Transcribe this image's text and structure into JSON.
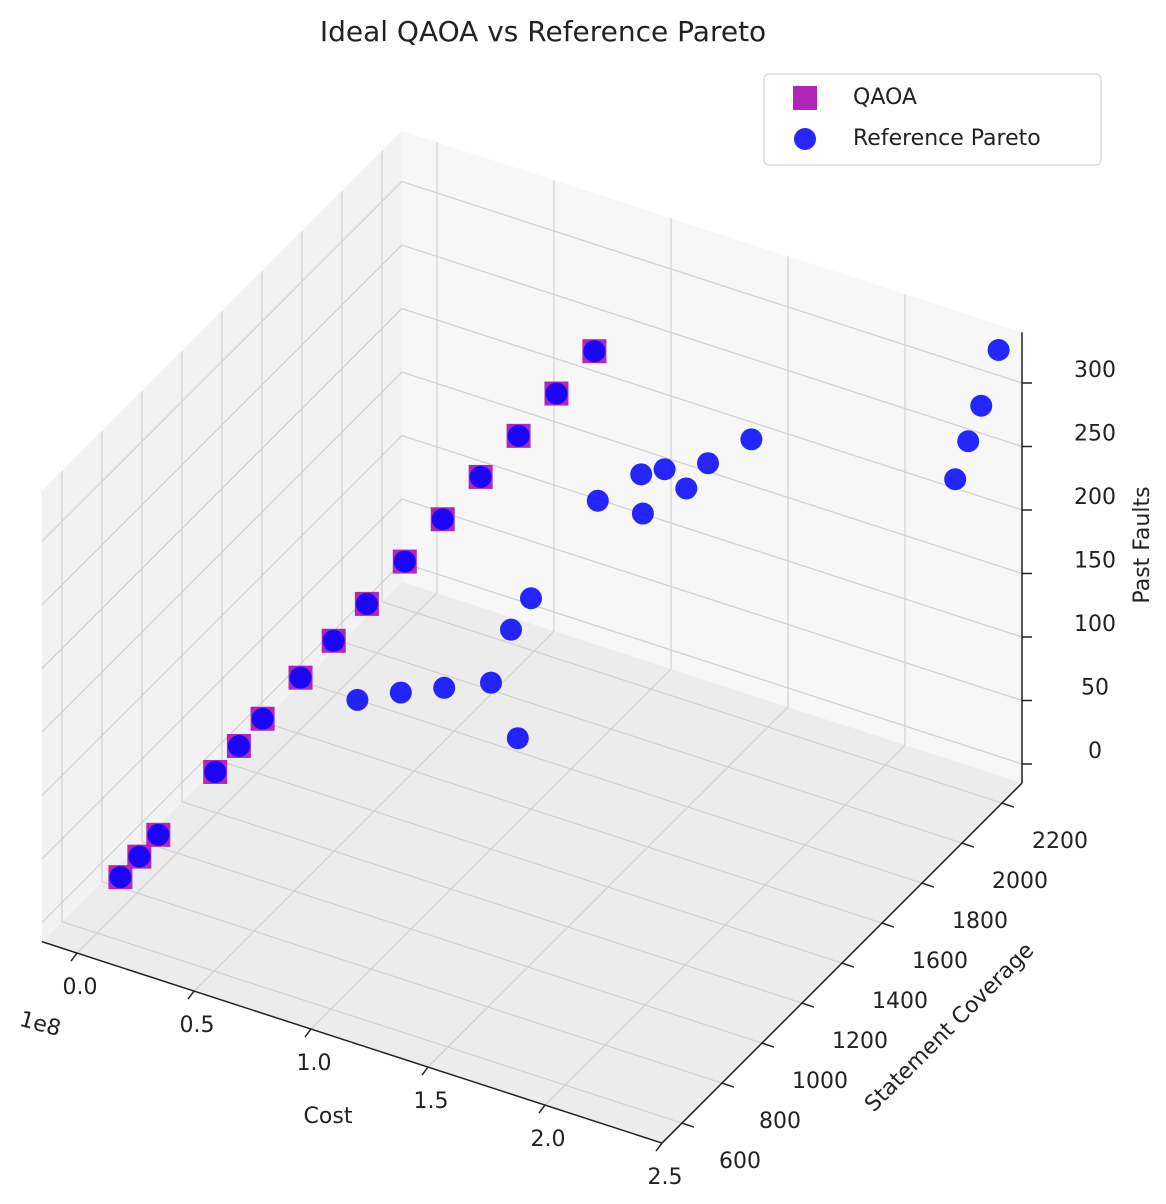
{
  "chart_data": {
    "type": "scatter3d",
    "title": "Ideal QAOA vs Reference Pareto",
    "x_label": "Cost",
    "y_label": "Statement Coverage",
    "z_label": "Past Faults",
    "x_offset_label": "1e8",
    "xlim": [
      -15000000,
      250000000
    ],
    "ylim": [
      500,
      2300
    ],
    "zlim": [
      -15,
      340
    ],
    "xticks": [
      {
        "value": 0,
        "label": "0.0"
      },
      {
        "value": 50000000,
        "label": "0.5"
      },
      {
        "value": 100000000,
        "label": "1.0"
      },
      {
        "value": 150000000,
        "label": "1.5"
      },
      {
        "value": 200000000,
        "label": "2.0"
      },
      {
        "value": 250000000,
        "label": "2.5"
      }
    ],
    "yticks": [
      600,
      800,
      1000,
      1200,
      1400,
      1600,
      1800,
      2000,
      2200
    ],
    "zticks": [
      0,
      50,
      100,
      150,
      200,
      250,
      300
    ],
    "grid": true,
    "legend": "upper right",
    "series": [
      {
        "name": "QAOA",
        "color": "#b026b9",
        "marker": "square",
        "x": [
          10000000,
          14000000,
          18000000,
          30000000,
          35000000,
          40000000,
          48000000,
          55000000,
          62000000,
          70000000,
          78000000,
          86000000,
          94000000,
          102000000,
          110000000
        ],
        "y": [
          600,
          648,
          696,
          840,
          900,
          960,
          1056,
          1140,
          1224,
          1320,
          1416,
          1512,
          1608,
          1704,
          1800
        ],
        "z": [
          35,
          46,
          58,
          92,
          106,
          121,
          143,
          163,
          183,
          206,
          229,
          252,
          274,
          297,
          320
        ]
      },
      {
        "name": "Reference Pareto",
        "color": "#0000ff",
        "marker": "circle",
        "x": [
          10000000,
          14000000,
          18000000,
          30000000,
          35000000,
          40000000,
          48000000,
          55000000,
          62000000,
          70000000,
          78000000,
          86000000,
          94000000,
          102000000,
          110000000,
          60000000,
          70000000,
          80000000,
          100000000,
          100000000,
          100000000,
          120000000,
          120000000,
          130000000,
          135000000,
          140000000,
          145000000,
          150000000,
          160000000,
          230000000,
          233000000,
          236000000,
          240000000
        ],
        "y": [
          600,
          648,
          696,
          840,
          900,
          960,
          1056,
          1140,
          1224,
          1320,
          1416,
          1512,
          1608,
          1704,
          1800,
          1200,
          1300,
          1400,
          1400,
          1500,
          1600,
          1300,
          1700,
          1800,
          1750,
          1800,
          1850,
          1900,
          2000,
          2200,
          2230,
          2260,
          2300
        ],
        "z": [
          35,
          46,
          58,
          92,
          106,
          121,
          143,
          163,
          183,
          206,
          229,
          252,
          274,
          297,
          320,
          110,
          106,
          100,
          116,
          142,
          151,
          100,
          224,
          235,
          215,
          245,
          225,
          240,
          249,
          228,
          255,
          280,
          320
        ]
      }
    ]
  }
}
